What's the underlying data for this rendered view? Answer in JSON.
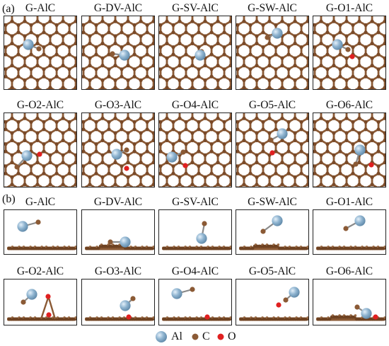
{
  "panel_labels": {
    "a": "(a)",
    "b": "(b)"
  },
  "panel_a_titles": [
    "G-AlC",
    "G-DV-AlC",
    "G-SV-AlC",
    "G-SW-AlC",
    "G-O1-AlC",
    "G-O2-AlC",
    "G-O3-AlC",
    "G-O4-AlC",
    "G-O5-AlC",
    "G-O6-AlC"
  ],
  "panel_b_titles": [
    "G-AlC",
    "G-DV-AlC",
    "G-SV-AlC",
    "G-SW-AlC",
    "G-O1-AlC",
    "G-O2-AlC",
    "G-O3-AlC",
    "G-O4-AlC",
    "G-O5-AlC",
    "G-O6-AlC"
  ],
  "legend": {
    "al": "Al",
    "c": "C",
    "o": "O"
  },
  "colors": {
    "al": "#8fb4d0",
    "c": "#8b5a35",
    "o": "#e02020",
    "frame": "#222222"
  }
}
